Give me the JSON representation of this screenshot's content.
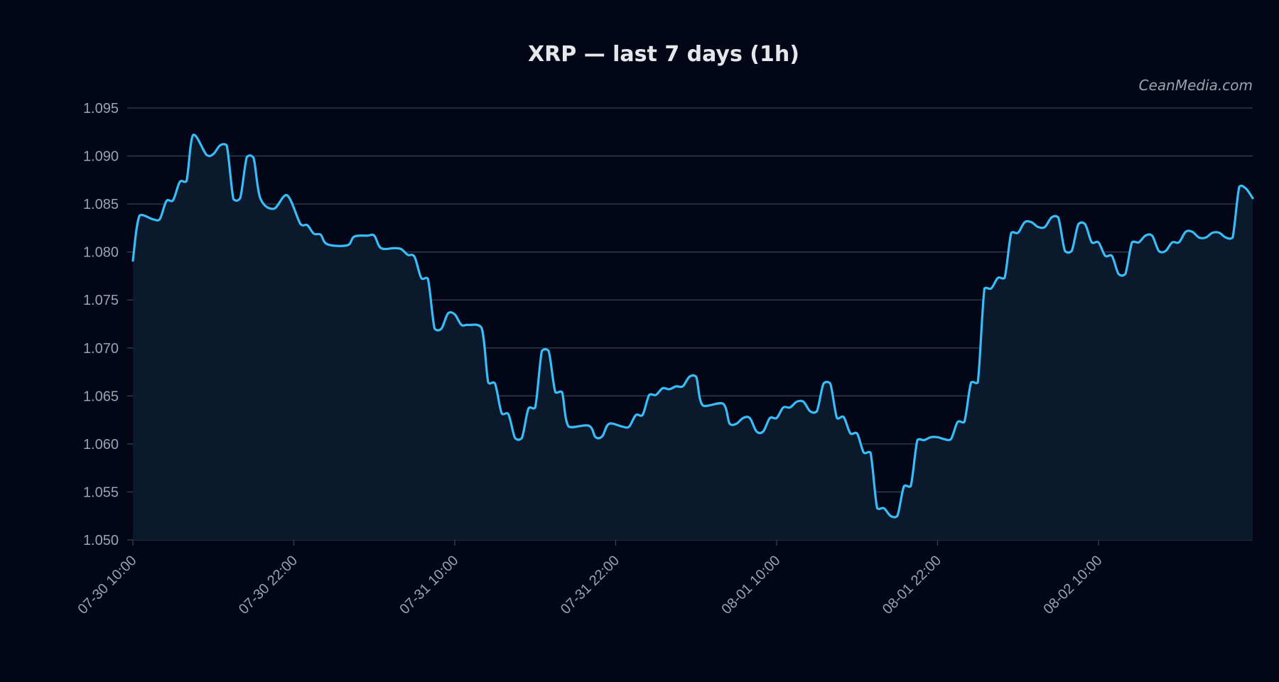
{
  "colors": {
    "background": "#020617",
    "line": "#38bdf8",
    "area": "#0b1a2c",
    "grid": "#334155",
    "text": "#9ca3af",
    "title": "#e5e7eb"
  },
  "watermark": "CeanMedia.com",
  "chart_data": {
    "type": "area",
    "title": "XRP — last 7 days (1h)",
    "xlabel": "",
    "ylabel": "",
    "grid": true,
    "ylim": [
      1.05,
      1.095
    ],
    "yticks": [
      "1.095",
      "1.090",
      "1.085",
      "1.080",
      "1.075",
      "1.070",
      "1.065",
      "1.060",
      "1.055",
      "1.050"
    ],
    "xticks": [
      {
        "label": "07-30 10:00",
        "hour": 0
      },
      {
        "label": "07-30 22:00",
        "hour": 12
      },
      {
        "label": "07-31 10:00",
        "hour": 24
      },
      {
        "label": "07-31 22:00",
        "hour": 36
      },
      {
        "label": "08-01 10:00",
        "hour": 48
      },
      {
        "label": "08-01 22:00",
        "hour": 60
      },
      {
        "label": "08-02 10:00",
        "hour": 72
      }
    ],
    "x_range_hours": [
      0,
      83.5
    ],
    "series": [
      {
        "values": [
          [
            0.0,
            1.0791
          ],
          [
            0.5,
            1.0838
          ],
          [
            1.5,
            1.0834
          ],
          [
            2.0,
            1.0834
          ],
          [
            2.5,
            1.0853
          ],
          [
            3.0,
            1.0854
          ],
          [
            3.5,
            1.0873
          ],
          [
            4.0,
            1.0874
          ],
          [
            4.5,
            1.0922
          ],
          [
            5.5,
            1.0901
          ],
          [
            6.0,
            1.0902
          ],
          [
            6.5,
            1.0911
          ],
          [
            7.0,
            1.0911
          ],
          [
            7.5,
            1.0855
          ],
          [
            8.0,
            1.0856
          ],
          [
            8.5,
            1.0899
          ],
          [
            9.0,
            1.0898
          ],
          [
            9.5,
            1.0856
          ],
          [
            10.5,
            1.0845
          ],
          [
            11.5,
            1.0859
          ],
          [
            12.5,
            1.0829
          ],
          [
            13.0,
            1.0828
          ],
          [
            13.5,
            1.0819
          ],
          [
            14.0,
            1.0818
          ],
          [
            14.5,
            1.0808
          ],
          [
            16.0,
            1.0807
          ],
          [
            16.5,
            1.0816
          ],
          [
            17.5,
            1.0817
          ],
          [
            18.0,
            1.0817
          ],
          [
            18.5,
            1.0804
          ],
          [
            19.5,
            1.0804
          ],
          [
            20.0,
            1.0803
          ],
          [
            20.5,
            1.0797
          ],
          [
            21.0,
            1.0795
          ],
          [
            21.5,
            1.0773
          ],
          [
            22.0,
            1.0772
          ],
          [
            22.5,
            1.072
          ],
          [
            23.0,
            1.072
          ],
          [
            23.5,
            1.0736
          ],
          [
            24.0,
            1.0735
          ],
          [
            24.5,
            1.0724
          ],
          [
            25.0,
            1.0724
          ],
          [
            26.0,
            1.0721
          ],
          [
            26.5,
            1.0664
          ],
          [
            27.0,
            1.0663
          ],
          [
            27.5,
            1.0632
          ],
          [
            28.0,
            1.0631
          ],
          [
            28.5,
            1.0606
          ],
          [
            29.0,
            1.0606
          ],
          [
            29.5,
            1.0637
          ],
          [
            30.0,
            1.0638
          ],
          [
            30.5,
            1.0697
          ],
          [
            31.0,
            1.0697
          ],
          [
            31.5,
            1.0654
          ],
          [
            32.0,
            1.0654
          ],
          [
            32.5,
            1.0618
          ],
          [
            34.0,
            1.0619
          ],
          [
            34.5,
            1.0607
          ],
          [
            35.0,
            1.0608
          ],
          [
            35.5,
            1.0621
          ],
          [
            36.5,
            1.0618
          ],
          [
            37.0,
            1.0618
          ],
          [
            37.5,
            1.063
          ],
          [
            38.0,
            1.063
          ],
          [
            38.5,
            1.0651
          ],
          [
            39.0,
            1.0651
          ],
          [
            39.5,
            1.0658
          ],
          [
            40.0,
            1.0657
          ],
          [
            40.5,
            1.066
          ],
          [
            41.0,
            1.066
          ],
          [
            41.5,
            1.067
          ],
          [
            42.0,
            1.067
          ],
          [
            42.5,
            1.064
          ],
          [
            44.0,
            1.0642
          ],
          [
            44.5,
            1.0621
          ],
          [
            45.0,
            1.0621
          ],
          [
            45.5,
            1.0627
          ],
          [
            46.0,
            1.0627
          ],
          [
            46.5,
            1.0613
          ],
          [
            47.0,
            1.0613
          ],
          [
            47.5,
            1.0627
          ],
          [
            48.0,
            1.0627
          ],
          [
            48.5,
            1.0638
          ],
          [
            49.0,
            1.0638
          ],
          [
            49.5,
            1.0644
          ],
          [
            50.0,
            1.0644
          ],
          [
            50.5,
            1.0634
          ],
          [
            51.0,
            1.0634
          ],
          [
            51.5,
            1.0663
          ],
          [
            52.0,
            1.0663
          ],
          [
            52.5,
            1.0627
          ],
          [
            53.0,
            1.0628
          ],
          [
            53.5,
            1.0611
          ],
          [
            54.0,
            1.0611
          ],
          [
            54.5,
            1.0591
          ],
          [
            55.0,
            1.0591
          ],
          [
            55.5,
            1.0533
          ],
          [
            56.0,
            1.0533
          ],
          [
            56.5,
            1.0525
          ],
          [
            57.0,
            1.0525
          ],
          [
            57.5,
            1.0556
          ],
          [
            58.0,
            1.0556
          ],
          [
            58.5,
            1.0604
          ],
          [
            59.0,
            1.0604
          ],
          [
            59.5,
            1.0607
          ],
          [
            60.0,
            1.0607
          ],
          [
            60.5,
            1.0605
          ],
          [
            61.0,
            1.0605
          ],
          [
            61.5,
            1.0623
          ],
          [
            62.0,
            1.0623
          ],
          [
            62.5,
            1.0664
          ],
          [
            63.0,
            1.0664
          ],
          [
            63.5,
            1.0762
          ],
          [
            64.0,
            1.0762
          ],
          [
            64.5,
            1.0773
          ],
          [
            65.0,
            1.0773
          ],
          [
            65.5,
            1.082
          ],
          [
            66.0,
            1.082
          ],
          [
            66.5,
            1.0831
          ],
          [
            67.0,
            1.0831
          ],
          [
            67.5,
            1.0826
          ],
          [
            68.0,
            1.0826
          ],
          [
            68.5,
            1.0836
          ],
          [
            69.0,
            1.0836
          ],
          [
            69.5,
            1.0801
          ],
          [
            70.0,
            1.0801
          ],
          [
            70.5,
            1.0829
          ],
          [
            71.0,
            1.0829
          ],
          [
            71.5,
            1.081
          ],
          [
            72.0,
            1.081
          ],
          [
            72.5,
            1.0796
          ],
          [
            73.0,
            1.0796
          ],
          [
            73.5,
            1.0777
          ],
          [
            74.0,
            1.0777
          ],
          [
            74.5,
            1.081
          ],
          [
            75.0,
            1.081
          ],
          [
            75.5,
            1.0817
          ],
          [
            76.0,
            1.0817
          ],
          [
            76.5,
            1.0801
          ],
          [
            77.0,
            1.0801
          ],
          [
            77.5,
            1.081
          ],
          [
            78.0,
            1.081
          ],
          [
            78.5,
            1.0821
          ],
          [
            79.0,
            1.0821
          ],
          [
            79.5,
            1.0815
          ],
          [
            80.0,
            1.0815
          ],
          [
            80.5,
            1.082
          ],
          [
            81.0,
            1.082
          ],
          [
            81.5,
            1.0815
          ],
          [
            82.0,
            1.0815
          ],
          [
            82.5,
            1.0868
          ],
          [
            83.0,
            1.0866
          ],
          [
            83.5,
            1.0856
          ]
        ]
      }
    ]
  }
}
